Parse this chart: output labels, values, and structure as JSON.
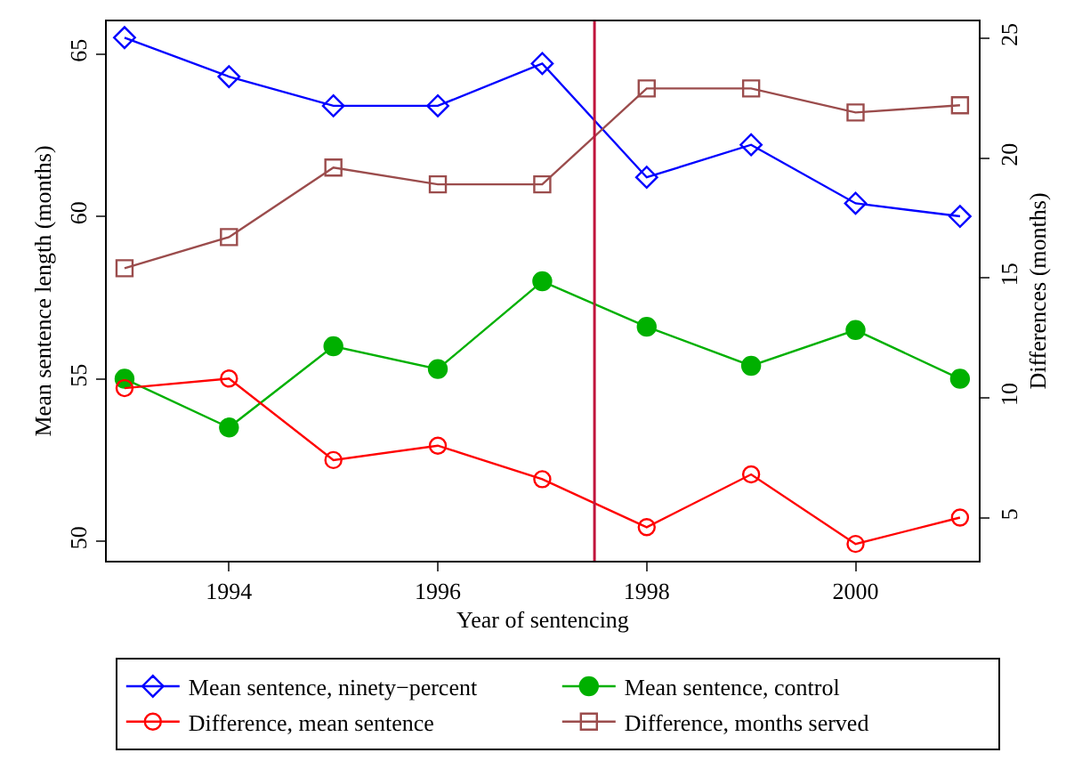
{
  "chart_data": {
    "type": "line",
    "xlabel": "Year of sentencing",
    "ylabel": "Mean sentence length (months)",
    "y2label": "Differences (months)",
    "x": [
      1993,
      1994,
      1995,
      1996,
      1997,
      1998,
      1999,
      2000,
      2001
    ],
    "series": [
      {
        "name": "Mean sentence, ninety−percent",
        "color": "#0000ff",
        "marker": "diamond",
        "values": [
          65.5,
          64.3,
          63.4,
          63.4,
          64.7,
          61.2,
          62.2,
          60.4,
          60.0
        ]
      },
      {
        "name": "Mean sentence, control",
        "color": "#00b000",
        "marker": "circle",
        "values": [
          55.0,
          53.5,
          56.0,
          55.3,
          58.0,
          56.6,
          55.4,
          56.5,
          55.0
        ]
      },
      {
        "name": "Difference, mean sentence",
        "color": "#ff0000",
        "marker": "circle-open",
        "axis": "y2",
        "values": [
          10.4,
          10.8,
          7.4,
          8.0,
          6.6,
          4.6,
          6.8,
          3.9,
          5.0
        ]
      },
      {
        "name": "Difference, months served",
        "color": "#9b4c4c",
        "marker": "square",
        "axis": "y2",
        "values": [
          15.4,
          16.7,
          19.6,
          18.9,
          18.9,
          22.9,
          22.9,
          21.9,
          22.2
        ]
      }
    ],
    "xlim": [
      1992.83,
      2001.18
    ],
    "xticks": [
      1994,
      1996,
      1998,
      2000
    ],
    "ylim": [
      49.4,
      66.0
    ],
    "yticks": [
      50,
      55,
      60,
      65
    ],
    "y2lim": [
      3.2,
      25.7
    ],
    "y2ticks": [
      5,
      10,
      15,
      20,
      25
    ],
    "ref_lines": [
      {
        "axis": "x",
        "value": 1997.5,
        "color": "#c0143c"
      }
    ],
    "grid": false,
    "legend": "bottom"
  }
}
